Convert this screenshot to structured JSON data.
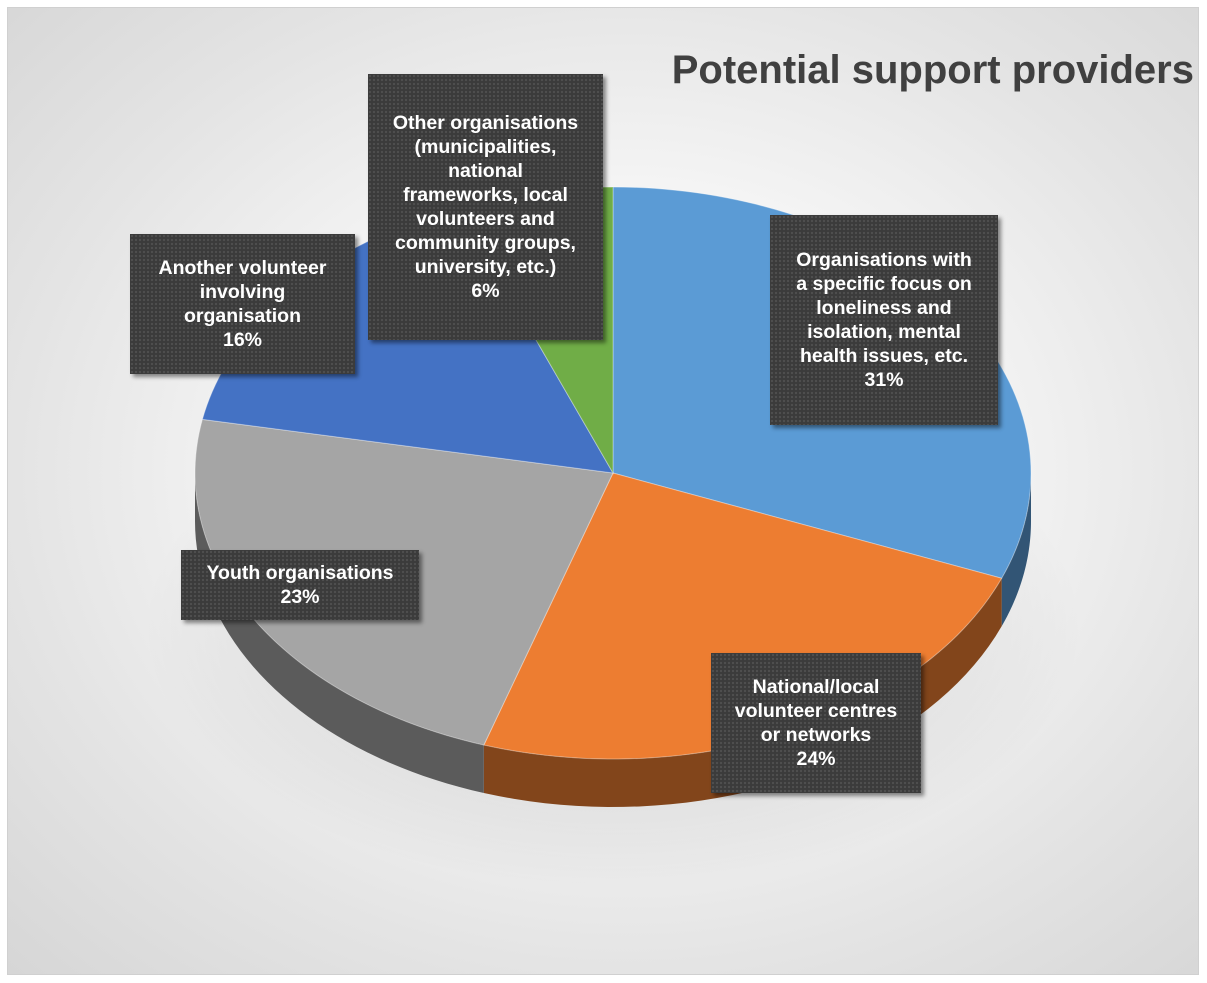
{
  "chart_data": {
    "type": "pie",
    "title": "Potential support providers",
    "slices": [
      {
        "label": "Organisations with a specific focus on loneliness and isolation, mental health issues, etc.",
        "value": 31,
        "value_label": "31%",
        "color": "#5b9bd5"
      },
      {
        "label": "National/local volunteer centres or networks",
        "value": 24,
        "value_label": "24%",
        "color": "#ed7d31"
      },
      {
        "label": "Youth organisations",
        "value": 23,
        "value_label": "23%",
        "color": "#a5a5a5"
      },
      {
        "label": "Another volunteer involving organisation",
        "value": 16,
        "value_label": "16%",
        "color": "#4472c4"
      },
      {
        "label": "Other organisations (municipalities, national frameworks, local volunteers and community groups, university, etc.)",
        "value": 6,
        "value_label": "6%",
        "color": "#70ad47"
      }
    ],
    "style": "3d-tilted-pie",
    "start": "top, clockwise"
  },
  "labels": {
    "slice0": {
      "lines": [
        "Organisations with",
        "a specific focus on",
        "loneliness and",
        "isolation, mental",
        "health issues, etc."
      ]
    },
    "slice1": {
      "lines": [
        "National/local",
        "volunteer centres",
        "or networks"
      ]
    },
    "slice2": {
      "lines": [
        "Youth organisations"
      ]
    },
    "slice3": {
      "lines": [
        "Another volunteer",
        "involving",
        "organisation"
      ]
    },
    "slice4": {
      "lines": [
        "Other organisations",
        "(municipalities,",
        "national",
        "frameworks, local",
        "volunteers and",
        "community groups,",
        "university, etc.)"
      ]
    }
  }
}
